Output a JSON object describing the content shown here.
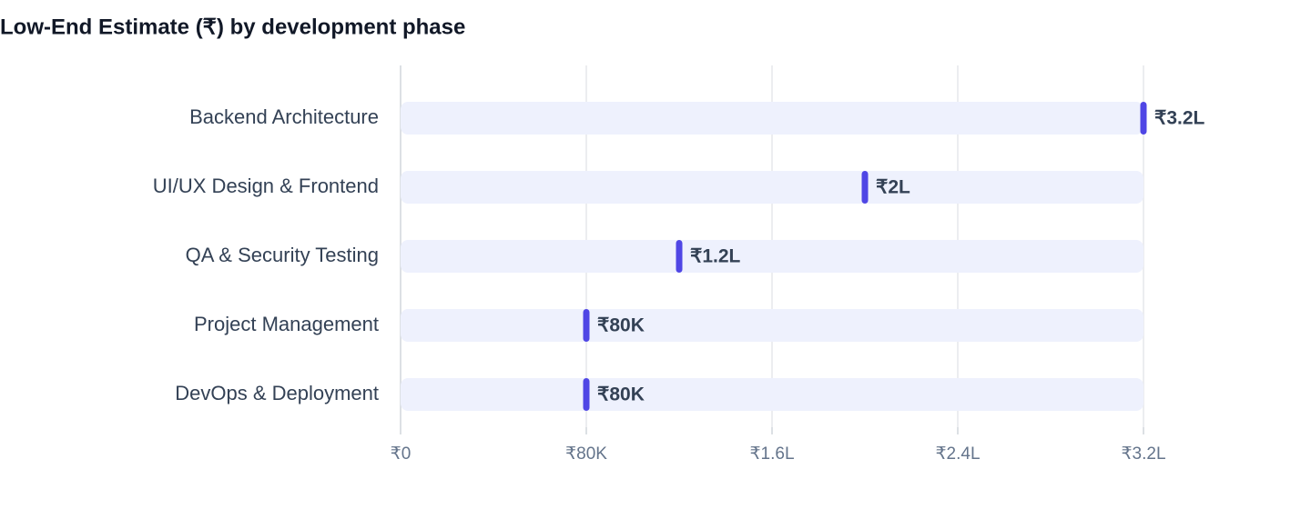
{
  "chart_data": {
    "type": "dot",
    "title": "Low-End Estimate (₹) by development phase",
    "categories": [
      "Backend Architecture",
      "UI/UX Design & Frontend",
      "QA & Security Testing",
      "Project Management",
      "DevOps & Deployment"
    ],
    "values": [
      320000,
      200000,
      120000,
      80000,
      80000
    ],
    "value_labels": [
      "₹3.2L",
      "₹2L",
      "₹1.2L",
      "₹80K",
      "₹80K"
    ],
    "color": "#4f46e5",
    "xlim": [
      0,
      320000
    ],
    "xticks": [
      {
        "value": 0,
        "label": "₹0"
      },
      {
        "value": 80000,
        "label": "₹80K"
      },
      {
        "value": 160000,
        "label": "₹1.6L"
      },
      {
        "value": 240000,
        "label": "₹2.4L"
      },
      {
        "value": 320000,
        "label": "₹3.2L"
      }
    ],
    "grid": true
  }
}
